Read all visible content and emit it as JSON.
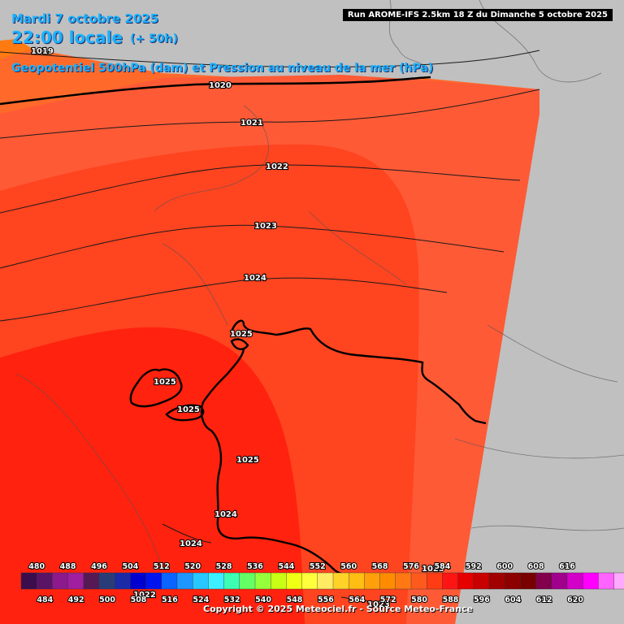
{
  "header": {
    "date": "Mardi 7 octobre 2025",
    "local_time": "22:00 locale",
    "forecast_offset": "(+ 50h)",
    "parameter": "Geopotentiel 500hPa (dam) et Pression au niveau de la mer (hPa)",
    "run_info": "Run AROME-IFS 2.5km 18 Z du Dimanche 5 octobre 2025"
  },
  "footer": {
    "copyright": "Copyright © 2025 Meteociel.fr - Source Meteo-France"
  },
  "colors": {
    "background": "#c0c0c0",
    "title_text": "#1ab2ff",
    "isobar": "#000000",
    "field_568": "#ff7a1a",
    "field_572": "#ff5a3a",
    "field_576": "#ff4a2a",
    "field_580": "#ff3a14",
    "field_584": "#ff2010"
  },
  "isobars": [
    {
      "label": "1019"
    },
    {
      "label": "1020"
    },
    {
      "label": "1021"
    },
    {
      "label": "1022"
    },
    {
      "label": "1023"
    },
    {
      "label": "1024"
    },
    {
      "label": "1025"
    },
    {
      "label": "1025"
    },
    {
      "label": "1025"
    },
    {
      "label": "1025"
    },
    {
      "label": "1024"
    },
    {
      "label": "1024"
    },
    {
      "label": "1023"
    },
    {
      "label": "1025"
    },
    {
      "label": "1022"
    }
  ],
  "legend": {
    "top_labels": [
      "480",
      "488",
      "496",
      "504",
      "512",
      "520",
      "528",
      "536",
      "544",
      "552",
      "560",
      "568",
      "576",
      "584",
      "592",
      "600",
      "608",
      "616"
    ],
    "bottom_labels": [
      "484",
      "492",
      "500",
      "508",
      "516",
      "524",
      "532",
      "540",
      "548",
      "556",
      "564",
      "572",
      "580",
      "588",
      "596",
      "604",
      "612",
      "620"
    ],
    "colors": [
      "#3b0d4d",
      "#5a1466",
      "#8c1a8c",
      "#a01ea0",
      "#551a55",
      "#2a3c78",
      "#1c2aa8",
      "#0000d0",
      "#0014f0",
      "#0a64ff",
      "#1e96ff",
      "#28c8ff",
      "#3cf0ff",
      "#3cffb4",
      "#64ff64",
      "#96ff3c",
      "#c8ff14",
      "#f0ff14",
      "#ffff3c",
      "#ffeb64",
      "#ffd228",
      "#ffbe14",
      "#ffa00a",
      "#ff8c00",
      "#ff7814",
      "#ff5a1e",
      "#ff3c14",
      "#ff1414",
      "#e60000",
      "#c80000",
      "#a00000",
      "#8c0000",
      "#780000",
      "#82004b",
      "#a0008c",
      "#d200c8",
      "#ff00ff",
      "#ff64ff",
      "#ffaaff"
    ]
  }
}
